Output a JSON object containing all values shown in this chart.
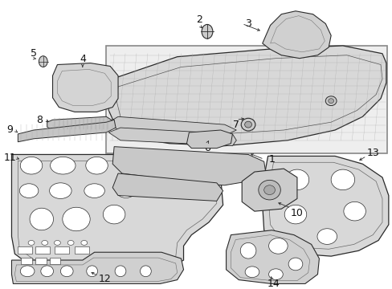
{
  "bg_color": "#ffffff",
  "line_color": "#2a2a2a",
  "fill_gray": "#d8d8d8",
  "fill_box": "#eeeeee",
  "label_color": "#111111",
  "font_size_label": 9
}
